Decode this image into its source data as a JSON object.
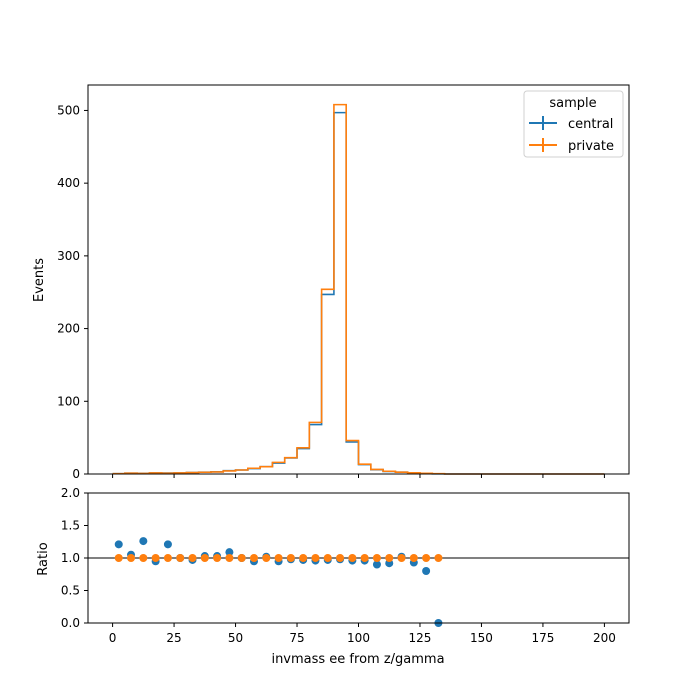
{
  "chart_data": [
    {
      "type": "line",
      "subtype": "step-histogram",
      "ylabel": "Events",
      "xlim": [
        -10,
        210
      ],
      "ylim": [
        0,
        535
      ],
      "yticks": [
        0,
        100,
        200,
        300,
        400,
        500
      ],
      "grid": false,
      "legend": {
        "title": "sample",
        "placement": "top-right"
      },
      "bin_edges": [
        0,
        5,
        10,
        15,
        20,
        25,
        30,
        35,
        40,
        45,
        50,
        55,
        60,
        65,
        70,
        75,
        80,
        85,
        90,
        95,
        100,
        105,
        110,
        115,
        120,
        125,
        130,
        135,
        140,
        145,
        150,
        155,
        160,
        165,
        170,
        175,
        180,
        185,
        190,
        195,
        200
      ],
      "series": [
        {
          "name": "central",
          "color": "#1f77b4",
          "values": [
            0.5,
            1.2,
            1.0,
            1.5,
            1.3,
            1.5,
            2.0,
            2.5,
            3.0,
            4.5,
            5.5,
            7.5,
            10.0,
            15.0,
            22.0,
            35.0,
            68.0,
            247.0,
            497.0,
            44.0,
            13.0,
            6.0,
            3.5,
            2.5,
            1.5,
            0.8,
            0.3,
            0,
            0,
            0,
            0,
            0,
            0,
            0,
            0,
            0,
            0,
            0,
            0,
            0
          ]
        },
        {
          "name": "private",
          "color": "#ff7f0e",
          "values": [
            0.4,
            1.1,
            0.8,
            1.4,
            1.1,
            1.5,
            2.0,
            2.4,
            2.9,
            4.2,
            5.5,
            7.9,
            10.0,
            16.0,
            22.5,
            36.0,
            71.0,
            254.0,
            508.0,
            46.0,
            13.5,
            6.3,
            3.8,
            2.5,
            1.6,
            1.0,
            0.4,
            0,
            0,
            0,
            0,
            0,
            0,
            0,
            0,
            0,
            0,
            0,
            0,
            0
          ]
        }
      ]
    },
    {
      "type": "scatter",
      "xlabel": "invmass ee from z/gamma",
      "ylabel": "Ratio",
      "xlim": [
        -10,
        210
      ],
      "ylim": [
        0,
        2.0
      ],
      "xticks": [
        0,
        25,
        50,
        75,
        100,
        125,
        150,
        175,
        200
      ],
      "yticks": [
        0.0,
        0.5,
        1.0,
        1.5,
        2.0
      ],
      "ytick_labels": [
        "0.0",
        "0.5",
        "1.0",
        "1.5",
        "2.0"
      ],
      "reference_line": 1.0,
      "x": [
        2.5,
        7.5,
        12.5,
        17.5,
        22.5,
        27.5,
        32.5,
        37.5,
        42.5,
        47.5,
        52.5,
        57.5,
        62.5,
        67.5,
        72.5,
        77.5,
        82.5,
        87.5,
        92.5,
        97.5,
        102.5,
        107.5,
        112.5,
        117.5,
        122.5,
        127.5,
        132.5
      ],
      "series": [
        {
          "name": "central",
          "color": "#1f77b4",
          "values": [
            1.21,
            1.05,
            1.26,
            0.95,
            1.21,
            1.0,
            0.97,
            1.03,
            1.03,
            1.09,
            1.0,
            0.95,
            1.02,
            0.95,
            0.98,
            0.97,
            0.96,
            0.97,
            0.98,
            0.96,
            0.96,
            0.9,
            0.92,
            1.02,
            0.93,
            0.8,
            0.0
          ]
        },
        {
          "name": "private",
          "color": "#ff7f0e",
          "values": [
            1,
            1,
            1,
            1,
            1,
            1,
            1,
            1,
            1,
            1,
            1,
            1,
            1,
            1,
            1,
            1,
            1,
            1,
            1,
            1,
            1,
            1,
            1,
            1,
            1,
            1,
            1
          ]
        }
      ]
    }
  ]
}
